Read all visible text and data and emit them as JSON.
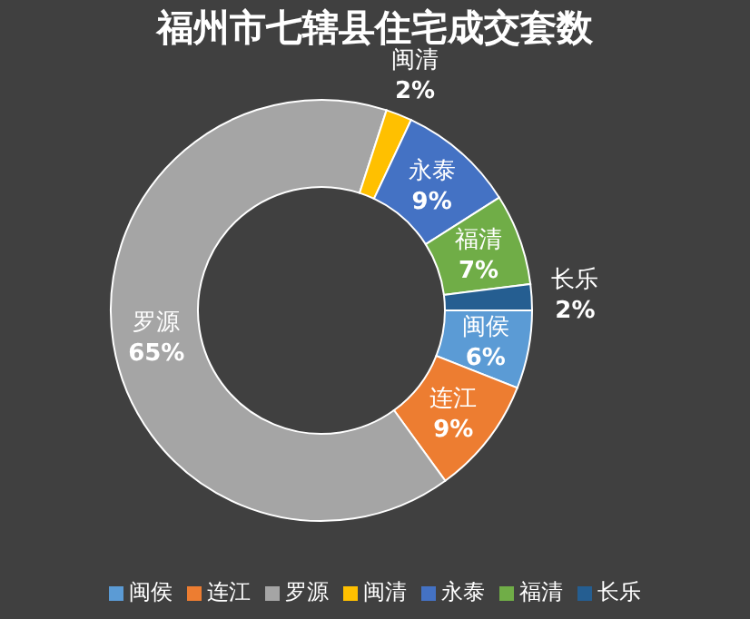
{
  "chart_data": {
    "type": "donut",
    "title": "福州市七辖县住宅成交套数",
    "categories": [
      "闽侯",
      "连江",
      "罗源",
      "闽清",
      "永泰",
      "福清",
      "长乐"
    ],
    "values": [
      6,
      9,
      65,
      2,
      9,
      7,
      2
    ],
    "colors": [
      "#5b9bd5",
      "#ed7d31",
      "#a5a5a5",
      "#ffc000",
      "#4472c4",
      "#70ad47",
      "#255e91"
    ],
    "value_labels": [
      "6%",
      "9%",
      "65%",
      "2%",
      "9%",
      "7%",
      "2%"
    ],
    "legend": "bottom"
  }
}
